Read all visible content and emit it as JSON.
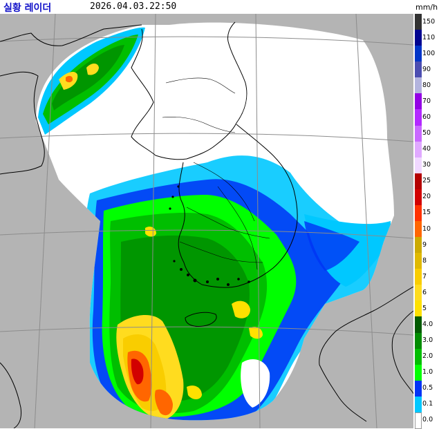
{
  "header": {
    "title": "실황 레이더",
    "timestamp": "2026.04.03.22:50",
    "unit": "mm/h"
  },
  "map": {
    "colors": {
      "sea": "#b4b4b4",
      "no_echo": "#ffffff",
      "coast": "#000000",
      "grid": "#8c8c8c"
    }
  },
  "legend": {
    "items": [
      {
        "label": "150",
        "color": "#333333"
      },
      {
        "label": "110",
        "color": "#000390"
      },
      {
        "label": "100",
        "color": "#0035c8"
      },
      {
        "label": "90",
        "color": "#4c4eb1"
      },
      {
        "label": "80",
        "color": "#b3b4de"
      },
      {
        "label": "70",
        "color": "#9300e4"
      },
      {
        "label": "60",
        "color": "#b329ff"
      },
      {
        "label": "50",
        "color": "#c969ff"
      },
      {
        "label": "40",
        "color": "#e0a9ff"
      },
      {
        "label": "30",
        "color": "#f0d8ff"
      },
      {
        "label": "25",
        "color": "#b40000"
      },
      {
        "label": "20",
        "color": "#d20000"
      },
      {
        "label": "15",
        "color": "#ff3200"
      },
      {
        "label": "10",
        "color": "#ff6600"
      },
      {
        "label": "9",
        "color": "#ccaa00"
      },
      {
        "label": "8",
        "color": "#e0b900"
      },
      {
        "label": "7",
        "color": "#f9cd00"
      },
      {
        "label": "6",
        "color": "#ffdc1f"
      },
      {
        "label": "5",
        "color": "#ffe100"
      },
      {
        "label": "4.0",
        "color": "#005a00"
      },
      {
        "label": "3.0",
        "color": "#008c00"
      },
      {
        "label": "2.0",
        "color": "#00be00"
      },
      {
        "label": "1.0",
        "color": "#00ff00"
      },
      {
        "label": "0.5",
        "color": "#0033f5"
      },
      {
        "label": "0.1",
        "color": "#00c8ff"
      },
      {
        "label": "0.0",
        "color": "#ffffff"
      }
    ]
  }
}
